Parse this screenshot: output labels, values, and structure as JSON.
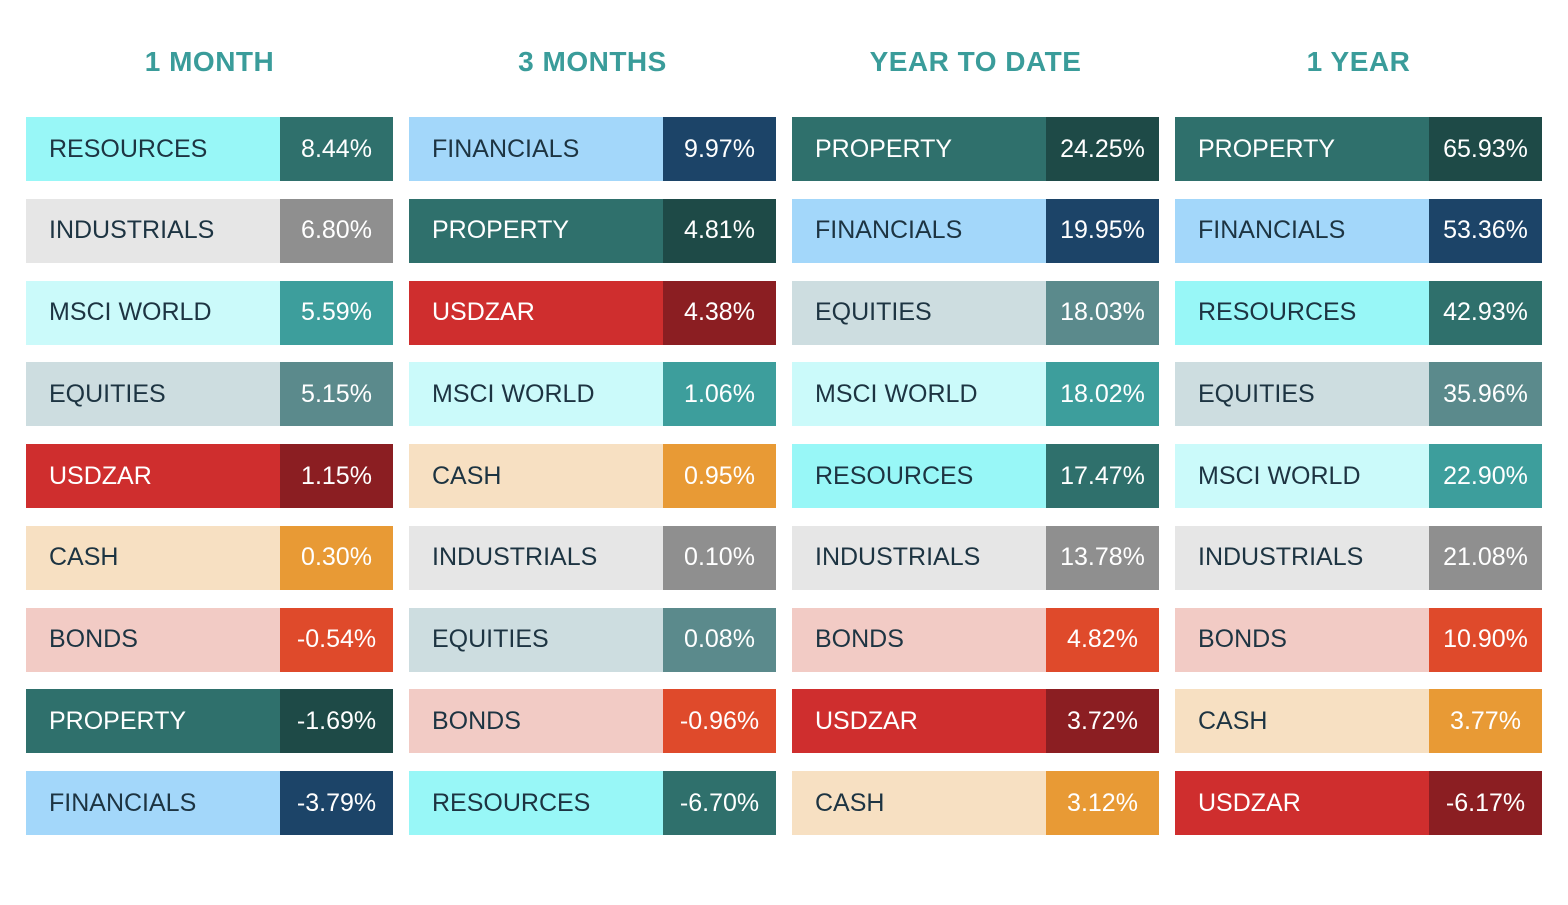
{
  "columns": [
    {
      "title": "1 MONTH",
      "rows": [
        {
          "label": "RESOURCES",
          "value": "8.44%"
        },
        {
          "label": "INDUSTRIALS",
          "value": "6.80%"
        },
        {
          "label": "MSCI WORLD",
          "value": "5.59%"
        },
        {
          "label": "EQUITIES",
          "value": "5.15%"
        },
        {
          "label": "USDZAR",
          "value": "1.15%"
        },
        {
          "label": "CASH",
          "value": "0.30%"
        },
        {
          "label": "BONDS",
          "value": "-0.54%"
        },
        {
          "label": "PROPERTY",
          "value": "-1.69%"
        },
        {
          "label": "FINANCIALS",
          "value": "-3.79%"
        }
      ]
    },
    {
      "title": "3 MONTHS",
      "rows": [
        {
          "label": "FINANCIALS",
          "value": "9.97%"
        },
        {
          "label": "PROPERTY",
          "value": "4.81%"
        },
        {
          "label": "USDZAR",
          "value": "4.38%"
        },
        {
          "label": "MSCI WORLD",
          "value": "1.06%"
        },
        {
          "label": "CASH",
          "value": "0.95%"
        },
        {
          "label": "INDUSTRIALS",
          "value": "0.10%"
        },
        {
          "label": "EQUITIES",
          "value": "0.08%"
        },
        {
          "label": "BONDS",
          "value": "-0.96%"
        },
        {
          "label": "RESOURCES",
          "value": "-6.70%"
        }
      ]
    },
    {
      "title": "YEAR TO DATE",
      "rows": [
        {
          "label": "PROPERTY",
          "value": "24.25%"
        },
        {
          "label": "FINANCIALS",
          "value": "19.95%"
        },
        {
          "label": "EQUITIES",
          "value": "18.03%"
        },
        {
          "label": "MSCI WORLD",
          "value": "18.02%"
        },
        {
          "label": "RESOURCES",
          "value": "17.47%"
        },
        {
          "label": "INDUSTRIALS",
          "value": "13.78%"
        },
        {
          "label": "BONDS",
          "value": "4.82%"
        },
        {
          "label": "USDZAR",
          "value": "3.72%"
        },
        {
          "label": "CASH",
          "value": "3.12%"
        }
      ]
    },
    {
      "title": "1 YEAR",
      "rows": [
        {
          "label": "PROPERTY",
          "value": "65.93%"
        },
        {
          "label": "FINANCIALS",
          "value": "53.36%"
        },
        {
          "label": "RESOURCES",
          "value": "42.93%"
        },
        {
          "label": "EQUITIES",
          "value": "35.96%"
        },
        {
          "label": "MSCI WORLD",
          "value": "22.90%"
        },
        {
          "label": "INDUSTRIALS",
          "value": "21.08%"
        },
        {
          "label": "BONDS",
          "value": "10.90%"
        },
        {
          "label": "CASH",
          "value": "3.77%"
        },
        {
          "label": "USDZAR",
          "value": "-6.17%"
        }
      ]
    }
  ],
  "asset_colors": {
    "RESOURCES": {
      "label_bg": "#98f7f7",
      "label_fg": "#1d3442",
      "value_bg": "#2f706c"
    },
    "INDUSTRIALS": {
      "label_bg": "#e6e6e6",
      "label_fg": "#1d3442",
      "value_bg": "#8f8f8f"
    },
    "MSCI WORLD": {
      "label_bg": "#cbfafa",
      "label_fg": "#1d3442",
      "value_bg": "#3d9e9c"
    },
    "EQUITIES": {
      "label_bg": "#cddde0",
      "label_fg": "#1d3442",
      "value_bg": "#5b8a8c"
    },
    "USDZAR": {
      "label_bg": "#cf2e2e",
      "label_fg": "#ffffff",
      "value_bg": "#8b1e22"
    },
    "CASH": {
      "label_bg": "#f7e0c2",
      "label_fg": "#1d3442",
      "value_bg": "#e89a35"
    },
    "BONDS": {
      "label_bg": "#f2cbc5",
      "label_fg": "#1d3442",
      "value_bg": "#df4a2b"
    },
    "PROPERTY": {
      "label_bg": "#2f706c",
      "label_fg": "#ffffff",
      "value_bg": "#1e4a47"
    },
    "FINANCIALS": {
      "label_bg": "#a3d7fa",
      "label_fg": "#1d3442",
      "value_bg": "#1c4468"
    }
  }
}
